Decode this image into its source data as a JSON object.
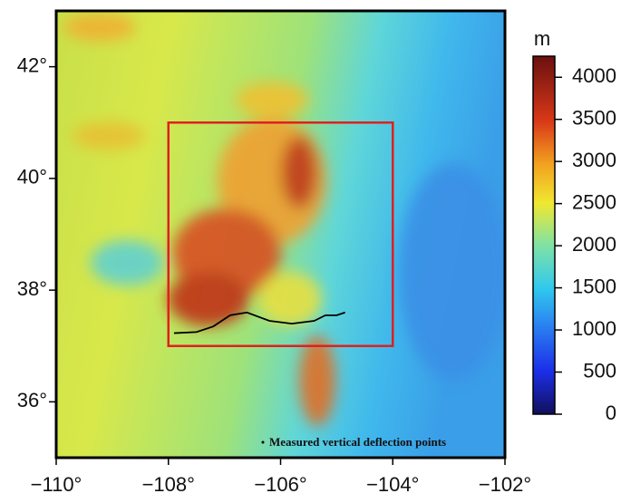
{
  "map": {
    "lonlim": [
      -110,
      -102
    ],
    "latlim": [
      35,
      43
    ],
    "lonticks": [
      {
        "value": -110,
        "label": "−110°"
      },
      {
        "value": -108,
        "label": "−108°"
      },
      {
        "value": -106,
        "label": "−106°"
      },
      {
        "value": -104,
        "label": "−104°"
      },
      {
        "value": -102,
        "label": "−102°"
      }
    ],
    "latticks": [
      {
        "value": 36,
        "label": "36°"
      },
      {
        "value": 38,
        "label": "38°"
      },
      {
        "value": 40,
        "label": "40°"
      },
      {
        "value": 42,
        "label": "42°"
      }
    ],
    "study_area": {
      "lon": [
        -108,
        -104
      ],
      "lat": [
        37,
        41
      ],
      "color": "#e02020"
    },
    "points": {
      "name": "Measured vertical deflection points",
      "lon": [
        -107.9,
        -107.5,
        -107.2,
        -106.9,
        -106.6,
        -106.2,
        -105.8,
        -105.4,
        -105.2,
        -105.0,
        -104.85
      ],
      "lat": [
        37.23,
        37.25,
        37.35,
        37.55,
        37.6,
        37.45,
        37.4,
        37.45,
        37.55,
        37.55,
        37.6
      ]
    },
    "colorbar": {
      "unit": "m",
      "clim": [
        0,
        4250
      ],
      "ticks": [
        0,
        500,
        1000,
        1500,
        2000,
        2500,
        3000,
        3500,
        4000
      ]
    }
  }
}
